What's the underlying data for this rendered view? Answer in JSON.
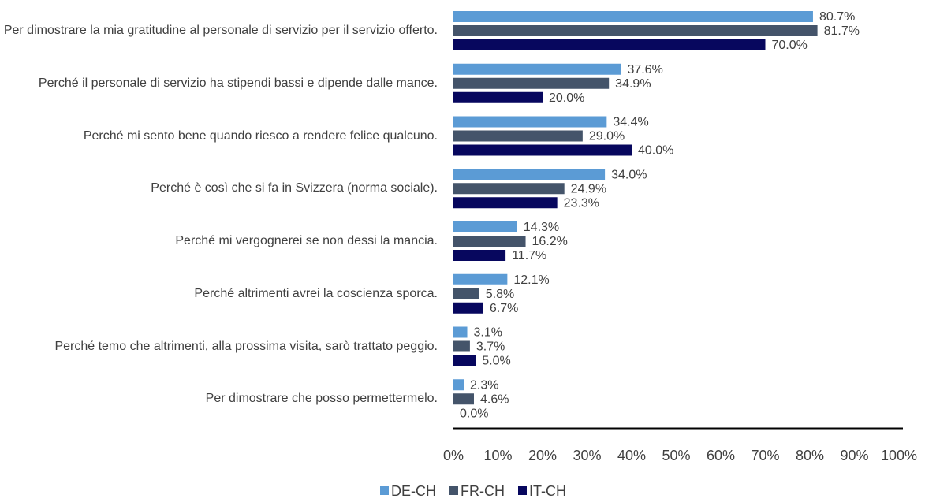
{
  "chart_data": {
    "type": "barh",
    "categories": [
      "Per dimostrare la mia gratitudine al personale di servizio per il servizio offerto.",
      "Perché il personale di servizio ha stipendi bassi e dipende dalle mance.",
      "Perché mi sento bene quando riesco a rendere felice qualcuno.",
      "Perché è così che si fa in Svizzera (norma sociale).",
      "Perché mi vergognerei se non dessi la mancia.",
      "Perché altrimenti avrei la coscienza sporca.",
      "Perché temo che altrimenti, alla prossima visita, sarò trattato peggio.",
      "Per dimostrare che posso permettermelo."
    ],
    "series": [
      {
        "name": "DE-CH",
        "color": "#5b9bd5",
        "values": [
          80.7,
          37.6,
          34.4,
          34.0,
          14.3,
          12.1,
          3.1,
          2.3
        ],
        "value_labels": [
          "80.7%",
          "37.6%",
          "34.4%",
          "34.0%",
          "14.3%",
          "12.1%",
          "3.1%",
          "2.3%"
        ]
      },
      {
        "name": "FR-CH",
        "color": "#44546a",
        "values": [
          81.7,
          34.9,
          29.0,
          24.9,
          16.2,
          5.8,
          3.7,
          4.6
        ],
        "value_labels": [
          "81.7%",
          "34.9%",
          "29.0%",
          "24.9%",
          "16.2%",
          "5.8%",
          "3.7%",
          "4.6%"
        ]
      },
      {
        "name": "IT-CH",
        "color": "#07075e",
        "values": [
          70.0,
          20.0,
          40.0,
          23.3,
          11.7,
          6.7,
          5.0,
          0.0
        ],
        "value_labels": [
          "70.0%",
          "20.0%",
          "40.0%",
          "23.3%",
          "11.7%",
          "6.7%",
          "5.0%",
          "0.0%"
        ]
      }
    ],
    "xlim": [
      0,
      100
    ],
    "xticks": [
      {
        "value": 0,
        "label": "0%"
      },
      {
        "value": 10,
        "label": "10%"
      },
      {
        "value": 20,
        "label": "20%"
      },
      {
        "value": 30,
        "label": "30%"
      },
      {
        "value": 40,
        "label": "40%"
      },
      {
        "value": 50,
        "label": "50%"
      },
      {
        "value": 60,
        "label": "60%"
      },
      {
        "value": 70,
        "label": "70%"
      },
      {
        "value": 80,
        "label": "80%"
      },
      {
        "value": 90,
        "label": "90%"
      },
      {
        "value": 100,
        "label": "100%"
      }
    ],
    "legend": "bottom"
  }
}
